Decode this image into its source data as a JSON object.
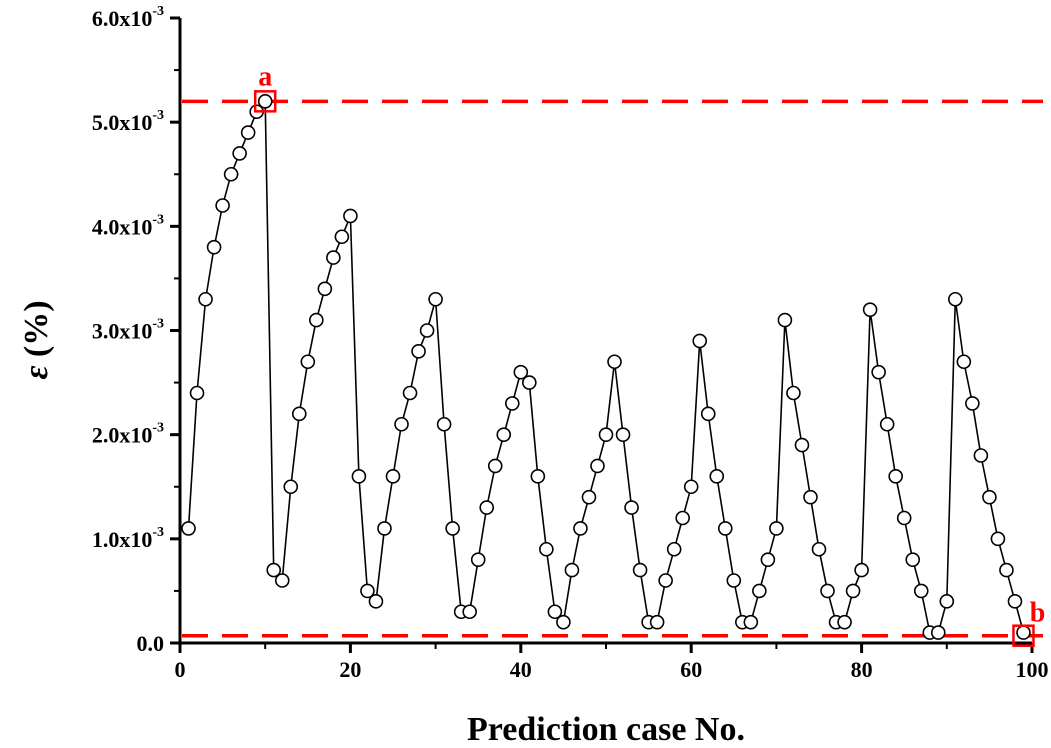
{
  "chart_data": {
    "type": "line",
    "marker": "open-circle",
    "xlabel": "Prediction case No.",
    "ylabel": "ε (%)",
    "xlim": [
      0,
      100
    ],
    "ylim": [
      0,
      0.006
    ],
    "x_ticks": [
      0,
      20,
      40,
      60,
      80,
      100
    ],
    "y_ticks": [
      {
        "value": 0.0,
        "base": "0.0",
        "exp": ""
      },
      {
        "value": 0.001,
        "base": "1.0x10",
        "exp": "-3"
      },
      {
        "value": 0.002,
        "base": "2.0x10",
        "exp": "-3"
      },
      {
        "value": 0.003,
        "base": "3.0x10",
        "exp": "-3"
      },
      {
        "value": 0.004,
        "base": "4.0x10",
        "exp": "-3"
      },
      {
        "value": 0.005,
        "base": "5.0x10",
        "exp": "-3"
      },
      {
        "value": 0.006,
        "base": "6.0x10",
        "exp": "-3"
      }
    ],
    "y_scale": 0.001,
    "series": [
      {
        "x": [
          1,
          2,
          3,
          4,
          5,
          6,
          7,
          8,
          9,
          10,
          11,
          12,
          13,
          14,
          15,
          16,
          17,
          18,
          19,
          20,
          21,
          22,
          23,
          24,
          25,
          26,
          27,
          28,
          29,
          30,
          31,
          32,
          33,
          34,
          35,
          36,
          37,
          38,
          39,
          40,
          41,
          42,
          43,
          44,
          45,
          46,
          47,
          48,
          49,
          50,
          51,
          52,
          53,
          54,
          55,
          56,
          57,
          58,
          59,
          60,
          61,
          62,
          63,
          64,
          65,
          66,
          67,
          68,
          69,
          70,
          71,
          72,
          73,
          74,
          75,
          76,
          77,
          78,
          79,
          80,
          81,
          82,
          83,
          84,
          85,
          86,
          87,
          88,
          89,
          90,
          91,
          92,
          93,
          94,
          95,
          96,
          97,
          98,
          99
        ],
        "y_e3": [
          1.1,
          2.4,
          3.3,
          3.8,
          4.2,
          4.5,
          4.7,
          4.9,
          5.1,
          5.2,
          0.7,
          0.6,
          1.5,
          2.2,
          2.7,
          3.1,
          3.4,
          3.7,
          3.9,
          4.1,
          1.6,
          0.5,
          0.4,
          1.1,
          1.6,
          2.1,
          2.4,
          2.8,
          3.0,
          3.3,
          2.1,
          1.1,
          0.3,
          0.3,
          0.8,
          1.3,
          1.7,
          2.0,
          2.3,
          2.6,
          2.5,
          1.6,
          0.9,
          0.3,
          0.2,
          0.7,
          1.1,
          1.4,
          1.7,
          2.0,
          2.7,
          2.0,
          1.3,
          0.7,
          0.2,
          0.2,
          0.6,
          0.9,
          1.2,
          1.5,
          2.9,
          2.2,
          1.6,
          1.1,
          0.6,
          0.2,
          0.2,
          0.5,
          0.8,
          1.1,
          3.1,
          2.4,
          1.9,
          1.4,
          0.9,
          0.5,
          0.2,
          0.2,
          0.5,
          0.7,
          3.2,
          2.6,
          2.1,
          1.6,
          1.2,
          0.8,
          0.5,
          0.1,
          0.1,
          0.4,
          3.3,
          2.7,
          2.3,
          1.8,
          1.4,
          1.0,
          0.7,
          0.4,
          0.1
        ]
      }
    ],
    "reference_lines": [
      {
        "y_e3": 5.2,
        "style": "dashed",
        "color": "#ff0000"
      },
      {
        "y_e3": 0.07,
        "style": "dashed",
        "color": "#ff0000"
      }
    ],
    "annotations": [
      {
        "label": "a",
        "x": 10,
        "y_e3": 5.2,
        "color": "#ff0000",
        "text_side": "above"
      },
      {
        "label": "b",
        "x": 99,
        "y_e3": 0.07,
        "color": "#ff0000",
        "text_side": "above-right"
      }
    ],
    "colors": {
      "line": "#000000",
      "marker_fill": "#ffffff",
      "highlight": "#ff0000"
    }
  }
}
